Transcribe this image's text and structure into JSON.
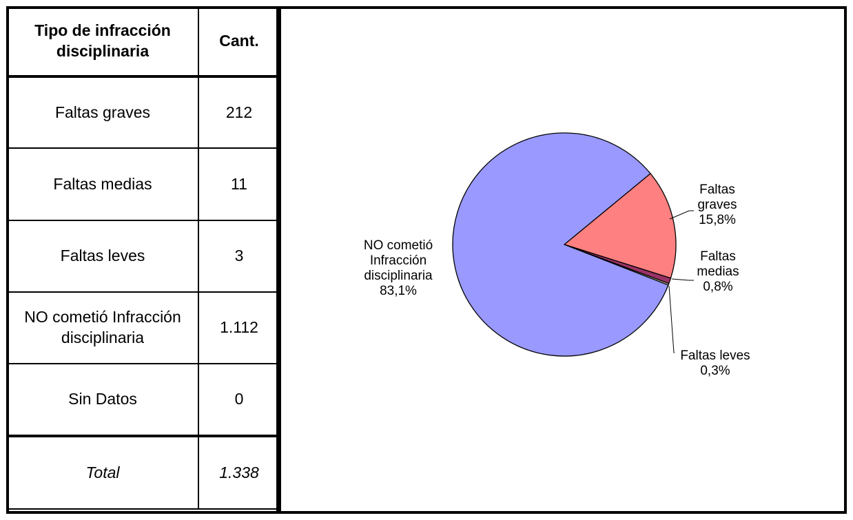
{
  "table": {
    "header": {
      "col1": "Tipo de infracción disciplinaria",
      "col2": "Cant."
    },
    "rows": [
      {
        "label": "Faltas graves",
        "value": "212"
      },
      {
        "label": "Faltas medias",
        "value": "11"
      },
      {
        "label": "Faltas leves",
        "value": "3"
      },
      {
        "label": "NO cometió Infracción disciplinaria",
        "value": "1.112"
      },
      {
        "label": "Sin Datos",
        "value": "0"
      }
    ],
    "total": {
      "label": "Total",
      "value": "1.338"
    }
  },
  "chart_data": {
    "type": "pie",
    "slices": [
      {
        "name": "Faltas graves",
        "value": 212,
        "percent_label": "15,8%",
        "label_lines": [
          "Faltas",
          "graves",
          "15,8%"
        ],
        "color": "#FF8080"
      },
      {
        "name": "Faltas medias",
        "value": 11,
        "percent_label": "0,8%",
        "label_lines": [
          "Faltas",
          "medias",
          "0,8%"
        ],
        "color": "#993366"
      },
      {
        "name": "Faltas leves",
        "value": 3,
        "percent_label": "0,3%",
        "label_lines": [
          "Faltas leves",
          "0,3%"
        ],
        "color": "#FFFFCC"
      },
      {
        "name": "NO cometió Infracción disciplinaria",
        "value": 1112,
        "percent_label": "83,1%",
        "label_lines": [
          "NO cometió",
          "Infracción",
          "disciplinaria",
          "83,1%"
        ],
        "color": "#9999FF"
      }
    ],
    "legend": "none"
  }
}
